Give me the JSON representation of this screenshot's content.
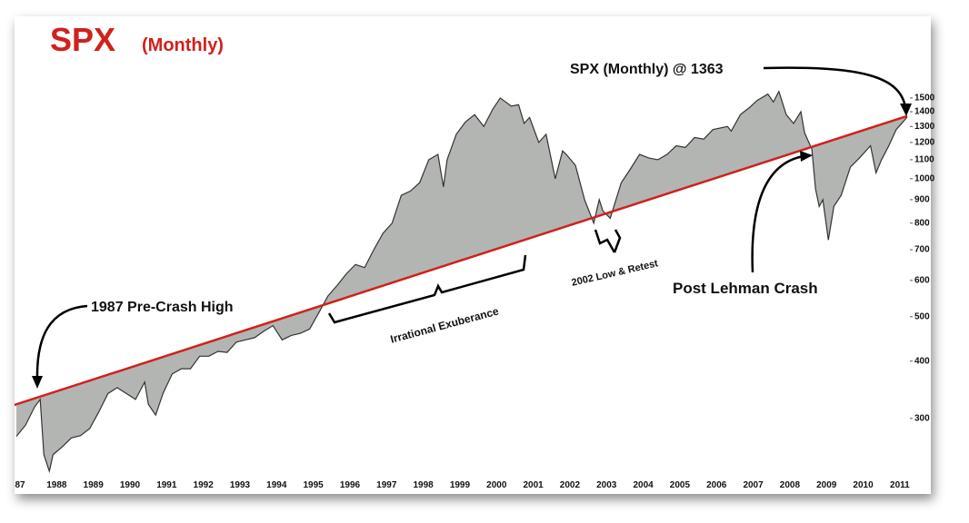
{
  "chart_data": {
    "type": "area",
    "title": "SPX",
    "subtitle": "(Monthly)",
    "log_scale": true,
    "color": "#333333",
    "fill_color": "#b3b5b2",
    "xlim": [
      1987,
      2011.35
    ],
    "xticks": [
      {
        "value": 1987,
        "label": "87"
      },
      1988,
      1989,
      1990,
      1991,
      1992,
      1993,
      1994,
      1995,
      1996,
      1997,
      1998,
      1999,
      2000,
      2001,
      2002,
      2003,
      2004,
      2005,
      2006,
      2007,
      2008,
      2009,
      2010,
      2011
    ],
    "ylim": [
      229,
      2240
    ],
    "yticks": [
      300,
      400,
      500,
      600,
      700,
      800,
      900,
      1000,
      1100,
      1200,
      1300,
      1400,
      1500
    ],
    "x": [
      1987.0,
      1987.25,
      1987.5,
      1987.65,
      1987.75,
      1987.9,
      1988.0,
      1988.25,
      1988.5,
      1988.75,
      1989.0,
      1989.25,
      1989.5,
      1989.75,
      1990.0,
      1990.25,
      1990.5,
      1990.6,
      1990.8,
      1991.0,
      1991.25,
      1991.5,
      1991.75,
      1992.0,
      1992.25,
      1992.5,
      1992.75,
      1993.0,
      1993.25,
      1993.5,
      1993.75,
      1994.0,
      1994.25,
      1994.5,
      1994.75,
      1995.0,
      1995.25,
      1995.5,
      1995.75,
      1996.0,
      1996.25,
      1996.5,
      1996.75,
      1997.0,
      1997.25,
      1997.5,
      1997.75,
      1998.0,
      1998.25,
      1998.5,
      1998.65,
      1998.75,
      1999.0,
      1999.25,
      1999.5,
      1999.75,
      2000.0,
      2000.2,
      2000.5,
      2000.7,
      2000.85,
      2001.0,
      2001.25,
      2001.45,
      2001.7,
      2001.9,
      2002.0,
      2002.25,
      2002.5,
      2002.75,
      2002.9,
      2003.0,
      2003.2,
      2003.5,
      2003.75,
      2004.0,
      2004.25,
      2004.5,
      2004.75,
      2005.0,
      2005.25,
      2005.5,
      2005.75,
      2006.0,
      2006.4,
      2006.5,
      2006.75,
      2007.0,
      2007.2,
      2007.5,
      2007.65,
      2007.8,
      2008.0,
      2008.2,
      2008.4,
      2008.5,
      2008.7,
      2008.8,
      2008.9,
      2009.0,
      2009.15,
      2009.3,
      2009.5,
      2009.75,
      2010.0,
      2010.3,
      2010.45,
      2010.6,
      2010.8,
      2011.0,
      2011.15,
      2011.3
    ],
    "values": [
      274,
      290,
      318,
      330,
      250,
      230,
      250,
      260,
      272,
      275,
      285,
      310,
      340,
      350,
      340,
      330,
      360,
      322,
      305,
      340,
      375,
      385,
      385,
      410,
      410,
      420,
      418,
      440,
      445,
      450,
      465,
      478,
      445,
      455,
      460,
      470,
      510,
      555,
      585,
      620,
      650,
      640,
      700,
      760,
      800,
      920,
      940,
      980,
      1100,
      1130,
      960,
      1100,
      1250,
      1330,
      1380,
      1300,
      1420,
      1500,
      1440,
      1450,
      1320,
      1360,
      1200,
      1250,
      1000,
      1150,
      1130,
      1070,
      900,
      800,
      900,
      850,
      820,
      980,
      1050,
      1130,
      1110,
      1100,
      1130,
      1180,
      1170,
      1230,
      1220,
      1280,
      1300,
      1270,
      1380,
      1430,
      1480,
      1530,
      1470,
      1550,
      1380,
      1320,
      1400,
      1260,
      1160,
      950,
      870,
      900,
      735,
      870,
      920,
      1060,
      1110,
      1180,
      1030,
      1100,
      1180,
      1280,
      1320,
      1363
    ],
    "trendline": {
      "x": [
        1987,
        2011.3
      ],
      "values": [
        320,
        1370
      ],
      "color": "#d0211c"
    },
    "annotations": [
      "SPX (Monthly) @ 1363",
      "1987 Pre-Crash High",
      "Irrational Exuberance",
      "2002 Low & Retest",
      "Post Lehman Crash"
    ]
  }
}
